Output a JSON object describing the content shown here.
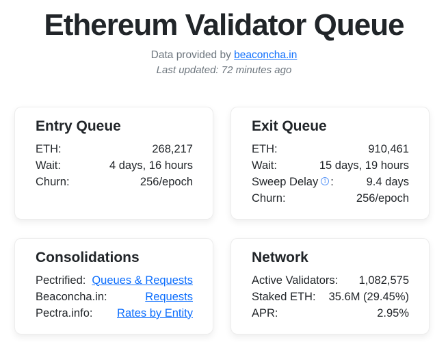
{
  "header": {
    "title": "Ethereum Validator Queue",
    "data_provided_prefix": "Data provided by ",
    "data_provider_link": "beaconcha.in",
    "last_updated": "Last updated: 72 minutes ago"
  },
  "colors": {
    "link_blue": "#0d6efd",
    "body_text": "#212529",
    "muted_gray": "#6c757d",
    "info_icon_blue": "#5b97f7"
  },
  "icons": {
    "info": {
      "name": "info-icon",
      "glyph": "i"
    }
  },
  "cards": {
    "entry_queue": {
      "title": "Entry Queue",
      "rows": [
        {
          "label": "ETH:",
          "value": "268,217"
        },
        {
          "label": "Wait:",
          "value": "4 days, 16 hours"
        },
        {
          "label": "Churn:",
          "value": "256/epoch"
        }
      ]
    },
    "exit_queue": {
      "title": "Exit Queue",
      "rows": [
        {
          "label": "ETH:",
          "value": "910,461"
        },
        {
          "label": "Wait:",
          "value": "15 days, 19 hours"
        },
        {
          "label": "Sweep Delay",
          "icon_glyph": "i",
          "colon": ":",
          "value": "9.4 days"
        },
        {
          "label": "Churn:",
          "value": "256/epoch"
        }
      ]
    },
    "consolidations": {
      "title": "Consolidations",
      "rows": [
        {
          "label": "Pectrified:",
          "link": "Queues & Requests"
        },
        {
          "label": "Beaconcha.in:",
          "link": "Requests"
        },
        {
          "label": "Pectra.info:",
          "link": "Rates by Entity"
        }
      ]
    },
    "network": {
      "title": "Network",
      "rows": [
        {
          "label": "Active Validators:",
          "value": "1,082,575"
        },
        {
          "label": "Staked ETH:",
          "value": "35.6M (29.45%)"
        },
        {
          "label": "APR:",
          "value": "2.95%"
        }
      ]
    }
  }
}
